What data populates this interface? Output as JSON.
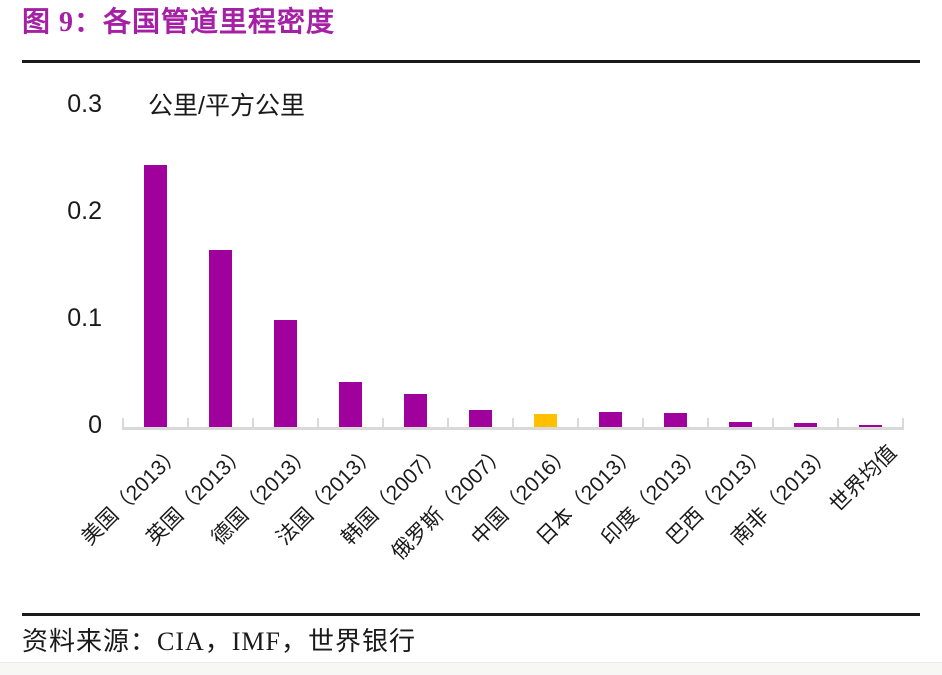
{
  "header": {
    "title": "图 9：各国管道里程密度"
  },
  "footer": {
    "source": "资料来源：CIA，IMF，世界银行"
  },
  "chart_data": {
    "type": "bar",
    "title": "图 9：各国管道里程密度",
    "unit_label": "公里/平方公里",
    "categories": [
      "美国（2013）",
      "英国（2013）",
      "德国（2013）",
      "法国（2013）",
      "韩国（2007）",
      "俄罗斯（2007）",
      "中国（2016）",
      "日本（2013）",
      "印度（2013）",
      "巴西（2013）",
      "南非（2013）",
      "世界均值"
    ],
    "values": [
      0.245,
      0.165,
      0.1,
      0.042,
      0.031,
      0.016,
      0.012,
      0.014,
      0.013,
      0.005,
      0.004,
      0.002
    ],
    "highlight_index": 6,
    "ylabel": "公里/平方公里",
    "xlabel": "",
    "ylim": [
      0,
      0.3
    ],
    "yticks": [
      0,
      0.1,
      0.2,
      0.3
    ],
    "ytick_labels": [
      "0",
      "0.1",
      "0.2",
      "0.3"
    ],
    "grid": false,
    "legend": false,
    "source": "资料来源：CIA，IMF，世界银行",
    "colors": {
      "bar": "#A0009C",
      "highlight": "#FFC000",
      "axis_line": "#D9D9D9",
      "title": "#A520A5",
      "text": "#1A1A1A"
    }
  }
}
